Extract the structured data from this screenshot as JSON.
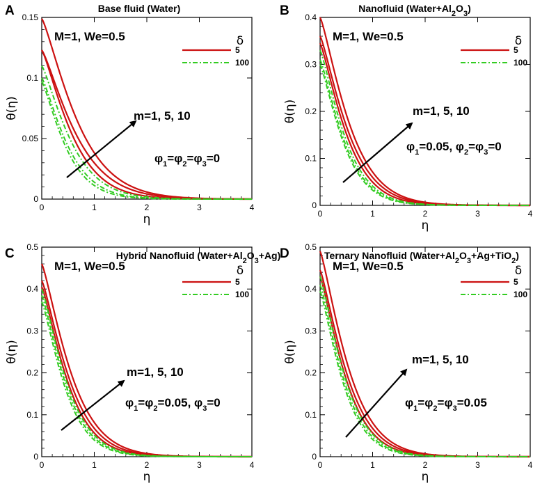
{
  "colors": {
    "red": "#cc1111",
    "green": "#33cc22",
    "axis": "#000000"
  },
  "chart_data": [
    {
      "panel": "A",
      "type": "line",
      "title": "Base fluid (Water)",
      "xlabel": "η",
      "ylabel": "θ(η)",
      "xlim": [
        0,
        4
      ],
      "ylim": [
        0,
        0.15
      ],
      "xticks": [
        "0",
        "1",
        "2",
        "3",
        "4"
      ],
      "yticks": [
        0,
        0.05,
        0.1,
        0.15
      ],
      "ytick_labels": [
        "0",
        "0.05",
        "0.1",
        "0.15"
      ],
      "annotation_params": "M=1, We=0.5",
      "annotation_m": "m=1, 5, 10",
      "phi_text": "φ1=φ2=φ3=0",
      "legend": {
        "title": "δ",
        "entries": [
          "5",
          "100"
        ]
      },
      "series": [
        {
          "name": "δ=5, m=1",
          "style": "solid",
          "theta0": 0.149,
          "decay": 1.28
        },
        {
          "name": "δ=5, m=5",
          "style": "solid",
          "theta0": 0.123,
          "decay": 1.32
        },
        {
          "name": "δ=5, m=10",
          "style": "solid",
          "theta0": 0.123,
          "decay": 1.5
        },
        {
          "name": "δ=100, m=1",
          "style": "dashdot",
          "theta0": 0.11,
          "decay": 1.55
        },
        {
          "name": "δ=100, m=5",
          "style": "dashdot",
          "theta0": 0.1,
          "decay": 1.72
        },
        {
          "name": "δ=100, m=10",
          "style": "dashdot",
          "theta0": 0.097,
          "decay": 1.85
        }
      ]
    },
    {
      "panel": "B",
      "type": "line",
      "title": "Nanofluid (Water+Al2O3)",
      "xlabel": "η",
      "ylabel": "θ(η)",
      "xlim": [
        0,
        4
      ],
      "ylim": [
        0,
        0.4
      ],
      "xticks": [
        "0",
        "1",
        "2",
        "3",
        "4"
      ],
      "yticks": [
        0,
        0.1,
        0.2,
        0.3,
        0.4
      ],
      "ytick_labels": [
        "0",
        "0.1",
        "0.2",
        "0.3",
        "0.4"
      ],
      "annotation_params": "M=1, We=0.5",
      "annotation_m": "m=1, 5, 10",
      "phi_text": "φ1=0.05, φ2=φ3=0",
      "legend": {
        "title": "δ",
        "entries": [
          "5",
          "100"
        ]
      },
      "series": [
        {
          "name": "δ=5, m=1",
          "style": "solid",
          "theta0": 0.4,
          "decay": 1.55
        },
        {
          "name": "δ=5, m=5",
          "style": "solid",
          "theta0": 0.36,
          "decay": 1.6
        },
        {
          "name": "δ=5, m=10",
          "style": "solid",
          "theta0": 0.345,
          "decay": 1.7
        },
        {
          "name": "δ=100, m=1",
          "style": "dashdot",
          "theta0": 0.33,
          "decay": 1.8
        },
        {
          "name": "δ=100, m=5",
          "style": "dashdot",
          "theta0": 0.31,
          "decay": 1.85
        },
        {
          "name": "δ=100, m=10",
          "style": "dashdot",
          "theta0": 0.3,
          "decay": 1.9
        }
      ]
    },
    {
      "panel": "C",
      "type": "line",
      "title": "Hybrid Nanofluid (Water+Al2O3+Ag)",
      "xlabel": "η",
      "ylabel": "θ(η)",
      "xlim": [
        0,
        4
      ],
      "ylim": [
        0,
        0.5
      ],
      "xticks": [
        "0",
        "1",
        "2",
        "3",
        "4"
      ],
      "yticks": [
        0,
        0.1,
        0.2,
        0.3,
        0.4,
        0.5
      ],
      "ytick_labels": [
        "0",
        "0.1",
        "0.2",
        "0.3",
        "0.4",
        "0.5"
      ],
      "annotation_params": "M=1, We=0.5",
      "annotation_m": "m=1, 5, 10",
      "phi_text": "φ1=φ2=0.05, φ3=0",
      "legend": {
        "title": "δ",
        "entries": [
          "5",
          "100"
        ]
      },
      "series": [
        {
          "name": "δ=5, m=1",
          "style": "solid",
          "theta0": 0.46,
          "decay": 1.55
        },
        {
          "name": "δ=5, m=5",
          "style": "solid",
          "theta0": 0.42,
          "decay": 1.62
        },
        {
          "name": "δ=5, m=10",
          "style": "solid",
          "theta0": 0.405,
          "decay": 1.72
        },
        {
          "name": "δ=100, m=1",
          "style": "dashdot",
          "theta0": 0.4,
          "decay": 1.78
        },
        {
          "name": "δ=100, m=5",
          "style": "dashdot",
          "theta0": 0.385,
          "decay": 1.84
        },
        {
          "name": "δ=100, m=10",
          "style": "dashdot",
          "theta0": 0.37,
          "decay": 1.9
        }
      ]
    },
    {
      "panel": "D",
      "type": "line",
      "title": "Ternary Nanofluid (Water+Al2O3+Ag+TiO2)",
      "xlabel": "η",
      "ylabel": "θ(η)",
      "xlim": [
        0,
        4
      ],
      "ylim": [
        0,
        0.5
      ],
      "xticks": [
        "0",
        "1",
        "2",
        "3",
        "4"
      ],
      "yticks": [
        0,
        0.1,
        0.2,
        0.3,
        0.4,
        0.5
      ],
      "ytick_labels": [
        "0",
        "0.1",
        "0.2",
        "0.3",
        "0.4",
        "0.5"
      ],
      "annotation_params": "M=1, We=0.5",
      "annotation_m": "m=1, 5, 10",
      "phi_text": "φ1=φ2=φ3=0.05",
      "legend": {
        "title": "δ",
        "entries": [
          "5",
          "100"
        ]
      },
      "series": [
        {
          "name": "δ=5, m=1",
          "style": "solid",
          "theta0": 0.49,
          "decay": 1.6
        },
        {
          "name": "δ=5, m=5",
          "style": "solid",
          "theta0": 0.445,
          "decay": 1.66
        },
        {
          "name": "δ=5, m=10",
          "style": "solid",
          "theta0": 0.43,
          "decay": 1.76
        },
        {
          "name": "δ=100, m=1",
          "style": "dashdot",
          "theta0": 0.43,
          "decay": 1.8
        },
        {
          "name": "δ=100, m=5",
          "style": "dashdot",
          "theta0": 0.41,
          "decay": 1.86
        },
        {
          "name": "δ=100, m=10",
          "style": "dashdot",
          "theta0": 0.395,
          "decay": 1.92
        }
      ]
    }
  ]
}
